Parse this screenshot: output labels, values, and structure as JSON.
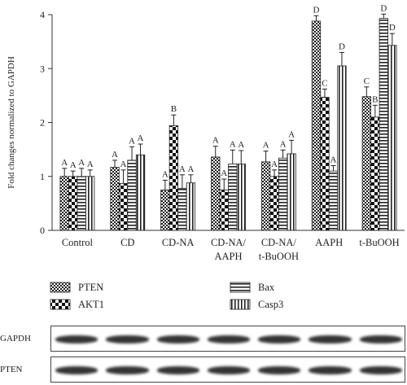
{
  "chart_data": {
    "type": "bar",
    "ylabel": "Fold changes normalized to GAPDH",
    "ylim": [
      0,
      4
    ],
    "yticks": [
      0,
      1,
      2,
      3,
      4
    ],
    "categories": [
      "Control",
      "CD",
      "CD-NA",
      "CD-NA/\nAAPH",
      "CD-NA/\nt-BuOOH",
      "AAPH",
      "t-BuOOH"
    ],
    "series": [
      {
        "name": "PTEN",
        "pattern": "checker-small",
        "values": [
          1.0,
          1.17,
          0.75,
          1.36,
          1.27,
          3.88,
          2.48
        ],
        "errors": [
          0.15,
          0.13,
          0.18,
          0.2,
          0.2,
          0.1,
          0.18
        ],
        "letters": [
          "A",
          "A",
          "A",
          "A",
          "A",
          "D",
          "C"
        ]
      },
      {
        "name": "AKT1",
        "pattern": "checker-large",
        "values": [
          1.0,
          0.87,
          1.94,
          0.75,
          1.0,
          2.47,
          2.1
        ],
        "errors": [
          0.1,
          0.25,
          0.2,
          0.2,
          0.12,
          0.15,
          0.22
        ],
        "letters": [
          "A",
          "A",
          "B",
          "A",
          "A",
          "C",
          "B"
        ]
      },
      {
        "name": "Bax",
        "pattern": "horizontal",
        "values": [
          1.0,
          1.3,
          0.78,
          1.23,
          1.34,
          1.1,
          3.93
        ],
        "errors": [
          0.15,
          0.25,
          0.25,
          0.26,
          0.15,
          0.1,
          0.08
        ],
        "letters": [
          "A",
          "A",
          "A",
          "A",
          "A",
          "A",
          "D"
        ]
      },
      {
        "name": "Casp3",
        "pattern": "vertical",
        "values": [
          1.0,
          1.4,
          0.88,
          1.23,
          1.42,
          3.05,
          3.43
        ],
        "errors": [
          0.12,
          0.2,
          0.15,
          0.25,
          0.25,
          0.25,
          0.22
        ],
        "letters": [
          "A",
          "A",
          "A",
          "A",
          "A",
          "D",
          "D"
        ]
      }
    ],
    "legend": "below"
  },
  "blots": [
    {
      "label": "GAPDH",
      "color": "#1e1e1e"
    },
    {
      "label": "PTEN",
      "color": "#1e1e1e"
    }
  ]
}
